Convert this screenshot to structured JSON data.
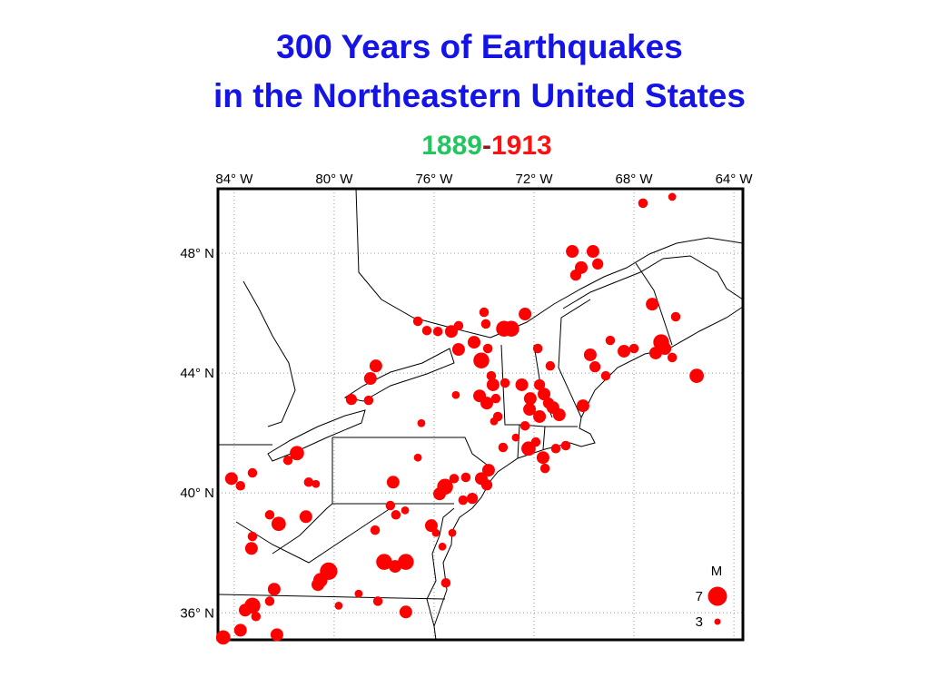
{
  "title": [
    "300 Years of Earthquakes",
    "in the Northeastern United States"
  ],
  "years": {
    "start": "1889",
    "dash": "-",
    "end": "1913",
    "start_color": "#22c55e",
    "dash_color": "#8b1a1a",
    "end_color": "#ff1010"
  },
  "map": {
    "xlim": [
      -84.65,
      -63.64
    ],
    "ylim": [
      35.1,
      50.15
    ],
    "xticks": [
      {
        "value": -84,
        "label": "84° W"
      },
      {
        "value": -80,
        "label": "80° W"
      },
      {
        "value": -76,
        "label": "76° W"
      },
      {
        "value": -72,
        "label": "72° W"
      },
      {
        "value": -68,
        "label": "68° W"
      },
      {
        "value": -64,
        "label": "64° W"
      }
    ],
    "yticks": [
      {
        "value": 48,
        "label": "48° N"
      },
      {
        "value": 44,
        "label": "44° N"
      },
      {
        "value": 40,
        "label": "40° N"
      },
      {
        "value": 36,
        "label": "36° N"
      }
    ],
    "grid": true,
    "marker_color": "#ff0000",
    "points": [
      [
        -67.64,
        49.67,
        4
      ],
      [
        -66.47,
        49.88,
        3.5
      ],
      [
        -70.47,
        48.06,
        5
      ],
      [
        -69.64,
        48.06,
        5
      ],
      [
        -69.45,
        47.64,
        4.5
      ],
      [
        -70.11,
        47.52,
        5
      ],
      [
        -70.33,
        47.27,
        4.5
      ],
      [
        -67.27,
        46.3,
        5
      ],
      [
        -66.33,
        45.88,
        4
      ],
      [
        -76.65,
        45.73,
        4
      ],
      [
        -76.29,
        45.42,
        4
      ],
      [
        -75.85,
        45.39,
        4
      ],
      [
        -75.31,
        45.39,
        5
      ],
      [
        -75.02,
        45.58,
        4
      ],
      [
        -74.0,
        46.03,
        4
      ],
      [
        -73.2,
        45.48,
        6
      ],
      [
        -72.91,
        45.48,
        6
      ],
      [
        -72.36,
        45.97,
        5
      ],
      [
        -73.93,
        45.64,
        4
      ],
      [
        -74.4,
        45.03,
        5
      ],
      [
        -75.02,
        44.79,
        5
      ],
      [
        -74.11,
        44.42,
        6
      ],
      [
        -73.85,
        44.82,
        4
      ],
      [
        -71.85,
        44.82,
        4
      ],
      [
        -71.35,
        44.24,
        4
      ],
      [
        -69.75,
        44.61,
        5
      ],
      [
        -68.95,
        45.09,
        4
      ],
      [
        -68.4,
        44.73,
        5
      ],
      [
        -68.0,
        44.82,
        4
      ],
      [
        -66.91,
        45.03,
        6
      ],
      [
        -66.76,
        44.82,
        5
      ],
      [
        -67.13,
        44.67,
        5
      ],
      [
        -66.47,
        44.52,
        4
      ],
      [
        -65.49,
        43.91,
        5.5
      ],
      [
        -69.56,
        44.21,
        4.5
      ],
      [
        -69.13,
        43.91,
        4
      ],
      [
        -78.33,
        44.24,
        5
      ],
      [
        -78.55,
        43.82,
        5
      ],
      [
        -79.31,
        43.12,
        4.5
      ],
      [
        -78.62,
        43.09,
        4
      ],
      [
        -73.71,
        43.91,
        4
      ],
      [
        -73.64,
        43.61,
        5
      ],
      [
        -74.18,
        43.24,
        5
      ],
      [
        -73.89,
        43.0,
        5
      ],
      [
        -73.53,
        43.15,
        4
      ],
      [
        -75.13,
        43.27,
        3.5
      ],
      [
        -73.16,
        43.67,
        4
      ],
      [
        -73.45,
        42.55,
        4
      ],
      [
        -73.6,
        42.39,
        3.5
      ],
      [
        -72.49,
        43.61,
        5
      ],
      [
        -72.15,
        43.15,
        5
      ],
      [
        -71.78,
        43.61,
        4.5
      ],
      [
        -71.6,
        43.3,
        5
      ],
      [
        -71.24,
        42.85,
        5
      ],
      [
        -71.42,
        43.0,
        4.5
      ],
      [
        -70.99,
        42.61,
        5
      ],
      [
        -71.78,
        42.55,
        5
      ],
      [
        -70.04,
        42.91,
        5
      ],
      [
        -72.18,
        42.79,
        5
      ],
      [
        -72.36,
        42.24,
        4
      ],
      [
        -76.51,
        42.33,
        3.5
      ],
      [
        -72.73,
        41.85,
        3.5
      ],
      [
        -72.22,
        41.48,
        5.5
      ],
      [
        -71.93,
        41.7,
        4
      ],
      [
        -71.13,
        41.48,
        4
      ],
      [
        -70.73,
        41.58,
        4
      ],
      [
        -71.64,
        41.18,
        5
      ],
      [
        -71.56,
        40.82,
        4
      ],
      [
        -73.24,
        41.52,
        4
      ],
      [
        -73.82,
        40.76,
        5
      ],
      [
        -74.11,
        40.48,
        5
      ],
      [
        -73.89,
        40.27,
        4.5
      ],
      [
        -74.73,
        40.52,
        4
      ],
      [
        -75.2,
        40.48,
        4
      ],
      [
        -75.56,
        40.21,
        6
      ],
      [
        -75.78,
        39.97,
        5
      ],
      [
        -74.47,
        39.82,
        4.5
      ],
      [
        -74.84,
        39.76,
        4
      ],
      [
        -76.11,
        38.91,
        5
      ],
      [
        -75.27,
        38.67,
        3.5
      ],
      [
        -75.93,
        38.67,
        3.5
      ],
      [
        -75.67,
        38.21,
        3.5
      ],
      [
        -75.53,
        37.0,
        4
      ],
      [
        -77.64,
        40.36,
        5
      ],
      [
        -77.75,
        39.58,
        4
      ],
      [
        -77.53,
        39.27,
        4
      ],
      [
        -78.36,
        38.76,
        4
      ],
      [
        -76.65,
        41.18,
        3.5
      ],
      [
        -77.16,
        39.42,
        3.5
      ],
      [
        -78.0,
        37.7,
        6
      ],
      [
        -77.56,
        37.55,
        5
      ],
      [
        -77.13,
        37.7,
        6
      ],
      [
        -80.22,
        37.39,
        6.5
      ],
      [
        -80.55,
        37.09,
        5.5
      ],
      [
        -80.65,
        36.94,
        5
      ],
      [
        -82.4,
        36.79,
        5
      ],
      [
        -82.58,
        36.39,
        4
      ],
      [
        -83.27,
        36.24,
        6
      ],
      [
        -83.56,
        36.09,
        5
      ],
      [
        -83.13,
        35.88,
        4
      ],
      [
        -83.75,
        35.42,
        5
      ],
      [
        -84.44,
        35.18,
        5.5
      ],
      [
        -82.29,
        35.27,
        5
      ],
      [
        -79.02,
        36.64,
        3.5
      ],
      [
        -78.25,
        36.39,
        4
      ],
      [
        -79.82,
        36.24,
        3.5
      ],
      [
        -77.13,
        36.03,
        5
      ],
      [
        -81.49,
        41.33,
        5.5
      ],
      [
        -81.85,
        41.09,
        4
      ],
      [
        -83.27,
        40.67,
        4
      ],
      [
        -84.11,
        40.48,
        5
      ],
      [
        -83.75,
        40.24,
        4
      ],
      [
        -81.02,
        40.36,
        4
      ],
      [
        -80.73,
        40.3,
        3.5
      ],
      [
        -82.22,
        38.97,
        5.5
      ],
      [
        -82.58,
        39.27,
        4
      ],
      [
        -81.13,
        39.21,
        5
      ],
      [
        -83.27,
        38.55,
        4
      ],
      [
        -83.31,
        38.15,
        5
      ]
    ],
    "legend": {
      "title": "M",
      "items": [
        7,
        3
      ]
    }
  }
}
